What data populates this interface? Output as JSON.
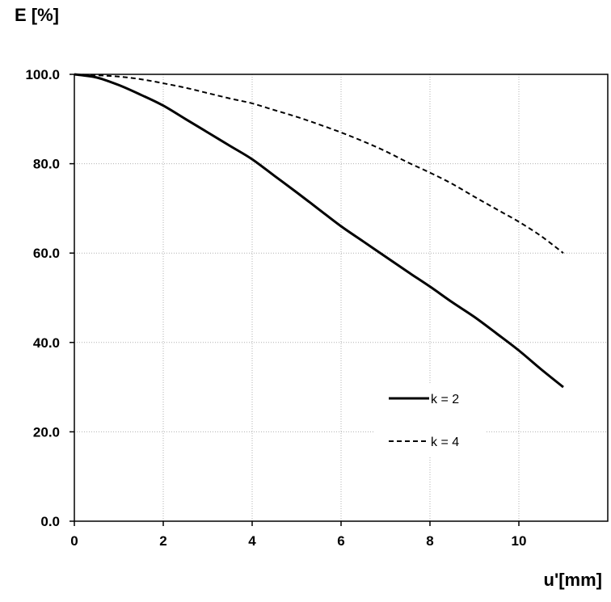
{
  "chart_data": {
    "type": "line",
    "title": "",
    "ylabel": "E [%]",
    "xlabel": "u'[mm]",
    "xlim": [
      0,
      12
    ],
    "ylim": [
      0,
      100
    ],
    "xticks": [
      0,
      2,
      4,
      6,
      8,
      10
    ],
    "xtick_labels": [
      "0",
      "2",
      "4",
      "6",
      "8",
      "10"
    ],
    "yticks": [
      0,
      20,
      40,
      60,
      80,
      100
    ],
    "ytick_labels": [
      "0.0",
      "20.0",
      "40.0",
      "60.0",
      "80.0",
      "100.0"
    ],
    "grid": true,
    "legend_position": "lower-right",
    "series": [
      {
        "name": "k = 2",
        "style": "solid",
        "color": "#000000",
        "x": [
          0,
          0.5,
          1,
          1.5,
          2,
          2.5,
          3,
          3.5,
          4,
          4.5,
          5,
          5.5,
          6,
          6.5,
          7,
          7.5,
          8,
          8.5,
          9,
          9.5,
          10,
          10.5,
          11
        ],
        "y": [
          100,
          99.3,
          97.6,
          95.4,
          93,
          90,
          87,
          84,
          81,
          77.3,
          73.6,
          69.8,
          66,
          62.6,
          59.2,
          55.8,
          52.5,
          49,
          45.7,
          42,
          38.2,
          34,
          30
        ]
      },
      {
        "name": "k = 4",
        "style": "dashed",
        "color": "#000000",
        "x": [
          0,
          0.5,
          1,
          1.5,
          2,
          2.5,
          3,
          3.5,
          4,
          4.5,
          5,
          5.5,
          6,
          6.5,
          7,
          7.5,
          8,
          8.5,
          9,
          9.5,
          10,
          10.5,
          11
        ],
        "y": [
          100,
          99.8,
          99.5,
          98.9,
          98,
          97,
          95.8,
          94.6,
          93.5,
          92,
          90.5,
          88.8,
          87,
          85,
          82.8,
          80.3,
          78,
          75.5,
          72.6,
          69.8,
          67,
          63.8,
          60
        ]
      }
    ]
  }
}
